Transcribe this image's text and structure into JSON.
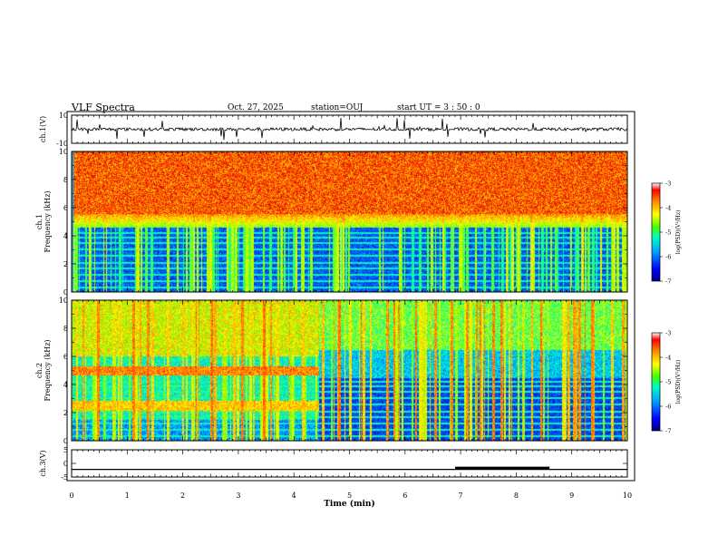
{
  "header": {
    "title": "VLF Spectra",
    "date": "Oct. 27, 2025",
    "station": "station=OUJ",
    "start_ut": "start  UT  =   3  : 50 : 0"
  },
  "chart_data": [
    {
      "type": "line",
      "panel": "ch1-waveform",
      "ylabel": "ch.1(V)",
      "ylim": [
        -10,
        10
      ],
      "y_tick_labels": [
        "10",
        "-10"
      ],
      "baseline": 0,
      "description_series": "broadband VLF waveform with frequent impulsive sferic spikes"
    },
    {
      "type": "heatmap",
      "panel": "ch1-spectrogram",
      "ylabel_line1": "ch.1",
      "ylabel_line2": "Frequency  (kHz)",
      "ylim": [
        0,
        10
      ],
      "y_tick_labels": [
        "0",
        "2",
        "4",
        "6",
        "8",
        "10"
      ],
      "colorbar": {
        "label": "log(PSD)(V²/Hz)",
        "range": [
          -7,
          -3
        ],
        "tick_labels": [
          "-7",
          "-6",
          "-5",
          "-4",
          "-3"
        ]
      },
      "features": {
        "high_power_band_kHz": [
          5.5,
          10
        ],
        "low_power_band_kHz": [
          0,
          4.5
        ]
      }
    },
    {
      "type": "heatmap",
      "panel": "ch2-spectrogram",
      "ylabel_line1": "ch.2",
      "ylabel_line2": "Frequency  (kHz)",
      "ylim": [
        0,
        10
      ],
      "y_tick_labels": [
        "0",
        "2",
        "4",
        "6",
        "8",
        "10"
      ],
      "colorbar": {
        "label": "log(PSD)(V²/Hz)",
        "range": [
          -7,
          -3
        ],
        "tick_labels": [
          "-7",
          "-6",
          "-5",
          "-4",
          "-3"
        ]
      },
      "features": {
        "enhanced_bands_until_min": 4.45,
        "enhanced_band_centers_kHz": [
          5.0,
          2.5
        ]
      }
    },
    {
      "type": "line",
      "panel": "ch3-waveform",
      "ylabel": "ch.3(V)",
      "ylim": [
        -5,
        5
      ],
      "y_tick_labels": [
        "5",
        "0",
        "-5"
      ],
      "baseline": -2.2,
      "thick_segment_min": [
        6.9,
        8.6
      ],
      "xlabel": "Time  (min)",
      "xlim": [
        0,
        10
      ],
      "x_tick_labels": [
        "0",
        "1",
        "2",
        "3",
        "4",
        "5",
        "6",
        "7",
        "8",
        "9",
        "10"
      ]
    }
  ],
  "colors": {
    "c0": "#00008c",
    "c1": "#0022e6",
    "c2": "#006eff",
    "c3": "#00c8ff",
    "c4": "#00ffb4",
    "c5": "#78ff00",
    "c6": "#ffff00",
    "c7": "#ffa000",
    "c8": "#ff2800",
    "c9": "#b40000"
  }
}
